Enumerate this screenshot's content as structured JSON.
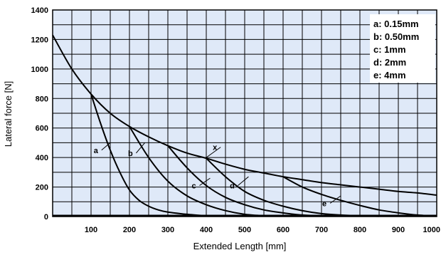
{
  "chart_data": {
    "type": "line",
    "title": "",
    "xlabel": "Extended Length [mm]",
    "ylabel": "Lateral force [N]",
    "xlim": [
      0,
      1000
    ],
    "ylim": [
      0,
      1400
    ],
    "x_ticks": [
      100,
      200,
      300,
      400,
      500,
      600,
      700,
      800,
      900,
      1000
    ],
    "y_ticks": [
      0,
      200,
      400,
      600,
      800,
      1000,
      1200,
      1400
    ],
    "grid": true,
    "background": "#dfe9f8",
    "line_color": "#000000",
    "legend_position": "top-right",
    "legend": [
      "a: 0.15mm",
      "b: 0.50mm",
      "c: 1mm",
      "d: 2mm",
      "e: 4mm"
    ],
    "series": [
      {
        "name": "x",
        "x": [
          0,
          50,
          100,
          150,
          200,
          250,
          300,
          350,
          400,
          450,
          500,
          550,
          600,
          650,
          700,
          750,
          800,
          850,
          900,
          950,
          1000
        ],
        "y": [
          1230,
          1000,
          830,
          700,
          610,
          540,
          480,
          430,
          395,
          355,
          320,
          295,
          270,
          250,
          230,
          215,
          200,
          185,
          170,
          160,
          145
        ]
      },
      {
        "name": "a",
        "x": [
          100,
          125,
          150,
          175,
          200,
          225,
          250,
          275,
          300,
          350,
          400
        ],
        "y": [
          830,
          630,
          450,
          300,
          180,
          110,
          70,
          45,
          30,
          15,
          5
        ]
      },
      {
        "name": "b",
        "x": [
          200,
          250,
          300,
          350,
          400,
          450,
          500,
          550
        ],
        "y": [
          610,
          400,
          240,
          140,
          80,
          40,
          15,
          5
        ]
      },
      {
        "name": "c",
        "x": [
          300,
          350,
          400,
          450,
          500,
          550,
          600,
          650,
          700
        ],
        "y": [
          480,
          330,
          210,
          130,
          80,
          45,
          25,
          10,
          5
        ]
      },
      {
        "name": "d",
        "x": [
          400,
          450,
          500,
          550,
          600,
          650,
          700,
          750,
          800,
          850
        ],
        "y": [
          395,
          270,
          170,
          110,
          70,
          40,
          20,
          10,
          5,
          2
        ]
      },
      {
        "name": "e",
        "x": [
          600,
          650,
          700,
          750,
          800,
          850,
          900,
          950,
          1000
        ],
        "y": [
          270,
          200,
          150,
          110,
          75,
          45,
          25,
          10,
          3
        ]
      }
    ],
    "curve_labels": [
      {
        "text": "a",
        "x": 120,
        "y": 450,
        "lx": 150,
        "ly": 500
      },
      {
        "text": "b",
        "x": 210,
        "y": 430,
        "lx": 240,
        "ly": 500
      },
      {
        "text": "c",
        "x": 375,
        "y": 210,
        "lx": 410,
        "ly": 260
      },
      {
        "text": "d",
        "x": 475,
        "y": 210,
        "lx": 510,
        "ly": 270
      },
      {
        "text": "e",
        "x": 715,
        "y": 90,
        "lx": 750,
        "ly": 140
      },
      {
        "text": "x",
        "x": 430,
        "y": 470,
        "lx": 400,
        "ly": 400
      }
    ]
  }
}
